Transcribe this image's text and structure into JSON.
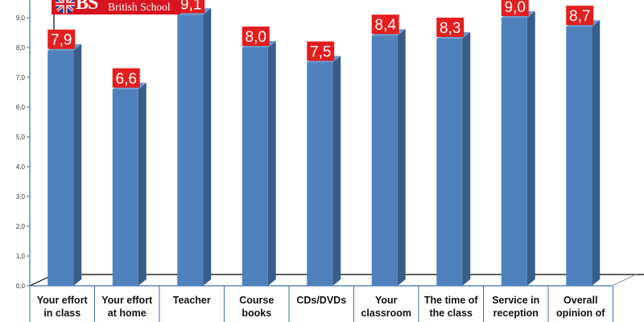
{
  "logo": {
    "letters": "BS",
    "name": "British School"
  },
  "colors": {
    "bar_front": "#4f81bd",
    "bar_side": "#385d8a",
    "bar_top": "#6d99cf",
    "label_bg": "#e41e1e",
    "axis_line": "#3f6fb4",
    "logo_bg": "#d8141e"
  },
  "chart_data": {
    "type": "bar",
    "style": "3d-column",
    "categories": [
      [
        "Your effort",
        "in class"
      ],
      [
        "Your effort",
        "at home"
      ],
      [
        "Teacher"
      ],
      [
        "Course",
        "books"
      ],
      [
        "CDs/DVDs"
      ],
      [
        "Your",
        "classroom"
      ],
      [
        "The time of",
        "the class"
      ],
      [
        "Service in",
        "reception"
      ],
      [
        "Overall",
        "opinion of"
      ]
    ],
    "values": [
      7.9,
      6.6,
      9.1,
      8.0,
      7.5,
      8.4,
      8.3,
      9.0,
      8.7
    ],
    "value_labels": [
      "7,9",
      "6,6",
      "9,1",
      "8,0",
      "7,5",
      "8,4",
      "8,3",
      "9,0",
      "8,7"
    ],
    "y_ticks": [
      "0,0",
      "1,0",
      "2,0",
      "3,0",
      "4,0",
      "5,0",
      "6,0",
      "7,0",
      "8,0",
      "9,0"
    ],
    "ylim": [
      0,
      10
    ],
    "grid": false,
    "legend": "none",
    "title": "",
    "xlabel": "",
    "ylabel": ""
  }
}
